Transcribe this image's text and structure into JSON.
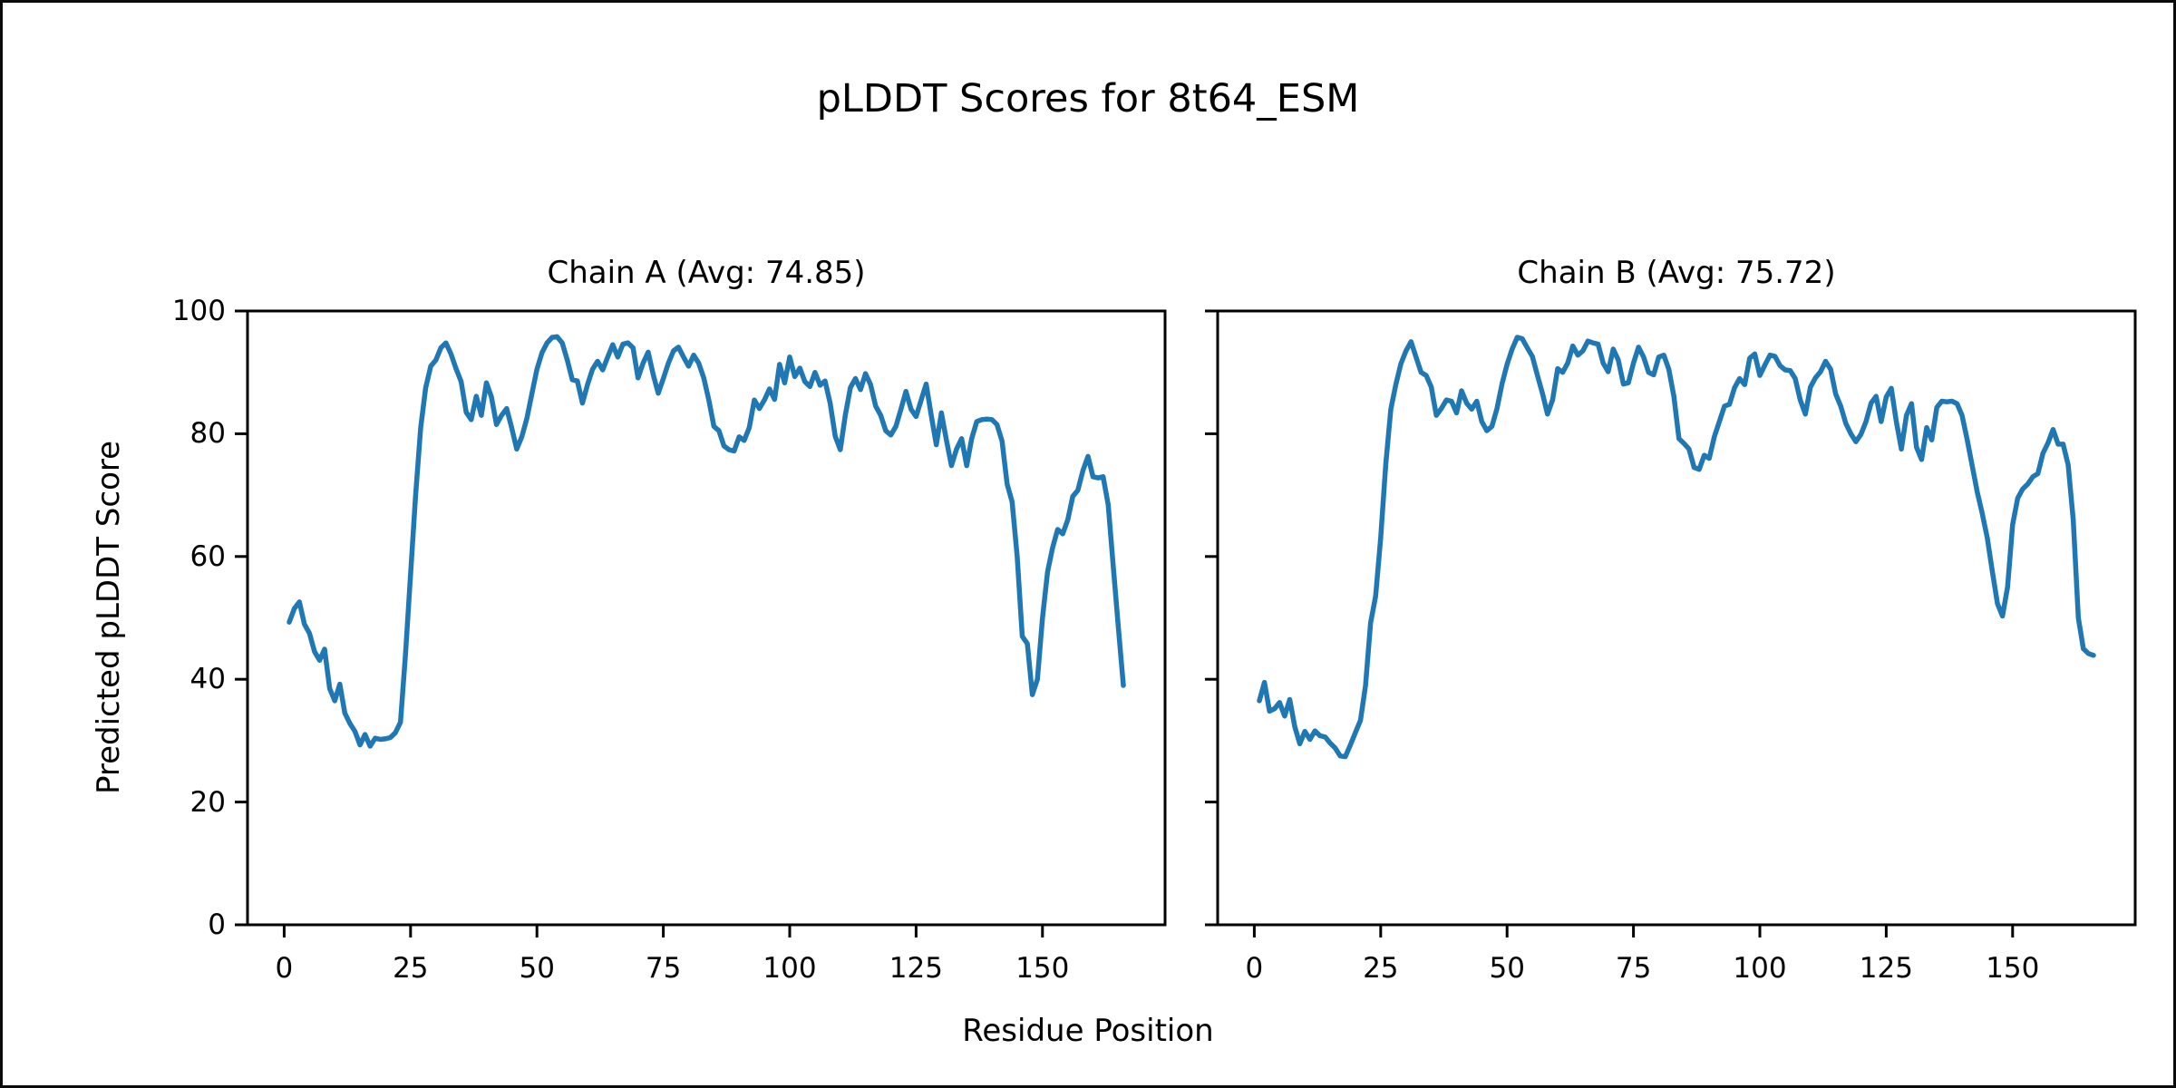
{
  "figure": {
    "title": "pLDDT Scores for 8t64_ESM",
    "xlabel": "Residue Position",
    "ylabel": "Predicted pLDDT Score",
    "background_color": "#ffffff",
    "text_color": "#000000",
    "line_color": "#1f77b4"
  },
  "chart_data": [
    {
      "type": "line",
      "title": "Chain A (Avg: 74.85)",
      "chain": "A",
      "avg": 74.85,
      "x_start": 1,
      "xlim": [
        -7.25,
        174.25
      ],
      "ylim": [
        0,
        100
      ],
      "xticks": [
        0,
        25,
        50,
        75,
        100,
        125,
        150
      ],
      "yticks": [
        0,
        20,
        40,
        60,
        80,
        100
      ],
      "show_ytick_labels": true,
      "grid": false,
      "legend": false,
      "values": [
        49.3,
        51.5,
        52.6,
        49,
        47.5,
        44.5,
        43.1,
        44.9,
        38.5,
        36.5,
        39.2,
        34.5,
        32.8,
        31.5,
        29.3,
        31,
        29.1,
        30.4,
        30.2,
        30.3,
        30.5,
        31.3,
        33,
        44,
        57,
        70,
        81,
        87.5,
        91,
        92,
        94,
        94.8,
        93,
        90.6,
        88.5,
        83.5,
        82.3,
        86.1,
        83,
        88.3,
        86,
        81.5,
        83,
        84.1,
        81,
        77.5,
        79.5,
        82.5,
        86.5,
        90.5,
        93.2,
        94.8,
        95.7,
        95.8,
        94.8,
        92,
        88.8,
        88.6,
        85,
        88,
        90.5,
        91.8,
        90.4,
        92.5,
        94.5,
        92.5,
        94.6,
        94.8,
        94,
        89.1,
        91.5,
        93.3,
        89.6,
        86.6,
        89,
        91.5,
        93.5,
        94.1,
        92.5,
        91,
        92.8,
        91.5,
        89.1,
        85.5,
        81.2,
        80.5,
        78,
        77.4,
        77.2,
        79.5,
        78.9,
        81,
        85.5,
        84.1,
        85.5,
        87.3,
        85.6,
        91.3,
        88.3,
        92.5,
        89.3,
        90.7,
        88.5,
        87.7,
        90,
        87.9,
        88.6,
        85,
        79.6,
        77.4,
        83,
        87.5,
        89,
        87.2,
        89.8,
        88,
        84.5,
        83,
        80.5,
        79.8,
        81.2,
        84,
        86.9,
        84,
        82.8,
        85.5,
        88.1,
        83,
        78.2,
        83.4,
        79,
        74.8,
        77.5,
        79.2,
        74.8,
        79.2,
        82,
        82.3,
        82.4,
        82.3,
        81.5,
        78.8,
        71.8,
        68.9,
        60,
        47,
        45.8,
        37.5,
        40,
        50,
        57.5,
        61.4,
        64.4,
        63.7,
        66,
        69.8,
        70.8,
        74,
        76.3,
        73,
        72.8,
        73,
        68.4,
        58.5,
        48.6,
        39
      ]
    },
    {
      "type": "line",
      "title": "Chain B (Avg: 75.72)",
      "chain": "B",
      "avg": 75.72,
      "x_start": 1,
      "xlim": [
        -7.25,
        174.25
      ],
      "ylim": [
        0,
        100
      ],
      "xticks": [
        0,
        25,
        50,
        75,
        100,
        125,
        150
      ],
      "yticks": [
        0,
        20,
        40,
        60,
        80,
        100
      ],
      "show_ytick_labels": false,
      "grid": false,
      "legend": false,
      "values": [
        36.5,
        39.5,
        34.8,
        35.2,
        36.2,
        34,
        36.7,
        32.3,
        29.5,
        31.5,
        30.2,
        31.6,
        30.8,
        30.6,
        29.6,
        28.8,
        27.5,
        27.4,
        29.3,
        31.3,
        33.3,
        39,
        49.2,
        53.5,
        63,
        75,
        84,
        88,
        91.4,
        93.5,
        95,
        92.5,
        90,
        89.5,
        87.6,
        83,
        84.1,
        85.5,
        85.3,
        83.4,
        87,
        85,
        84,
        85.3,
        82,
        80.5,
        81.2,
        84.1,
        88.1,
        91.3,
        93.8,
        95.7,
        95.5,
        94,
        92.6,
        89.5,
        86.6,
        83.2,
        85.5,
        90.6,
        90,
        91.5,
        94.3,
        92.8,
        93.5,
        95.1,
        94.8,
        94.6,
        91.5,
        90.1,
        93.8,
        92,
        88.1,
        88.3,
        91.5,
        94.1,
        92.5,
        90,
        89.6,
        92.5,
        92.8,
        90.5,
        86.1,
        79.2,
        78.4,
        77.5,
        74.5,
        74.2,
        76.5,
        76,
        79.5,
        82,
        84.5,
        84.8,
        87.5,
        89,
        88,
        92.3,
        93,
        89.5,
        91.2,
        92.8,
        92.6,
        91.1,
        90.4,
        90.3,
        89,
        85.5,
        83.2,
        87.6,
        89.1,
        90.1,
        91.8,
        90.5,
        86.5,
        84.5,
        81.7,
        80,
        78.7,
        79.9,
        82,
        85,
        86.1,
        82,
        86,
        87.4,
        82,
        77.5,
        83,
        84.9,
        77.8,
        75.8,
        81,
        79,
        84.3,
        85.3,
        85.2,
        85.3,
        84.9,
        83,
        79.1,
        74.8,
        70.5,
        67,
        63,
        57.5,
        52.3,
        50.3,
        55,
        65.2,
        69.5,
        71,
        71.8,
        73,
        73.5,
        76.8,
        78.5,
        80.7,
        78.3,
        78.3,
        74.9,
        65.9,
        50,
        45,
        44.2,
        43.9
      ]
    }
  ]
}
